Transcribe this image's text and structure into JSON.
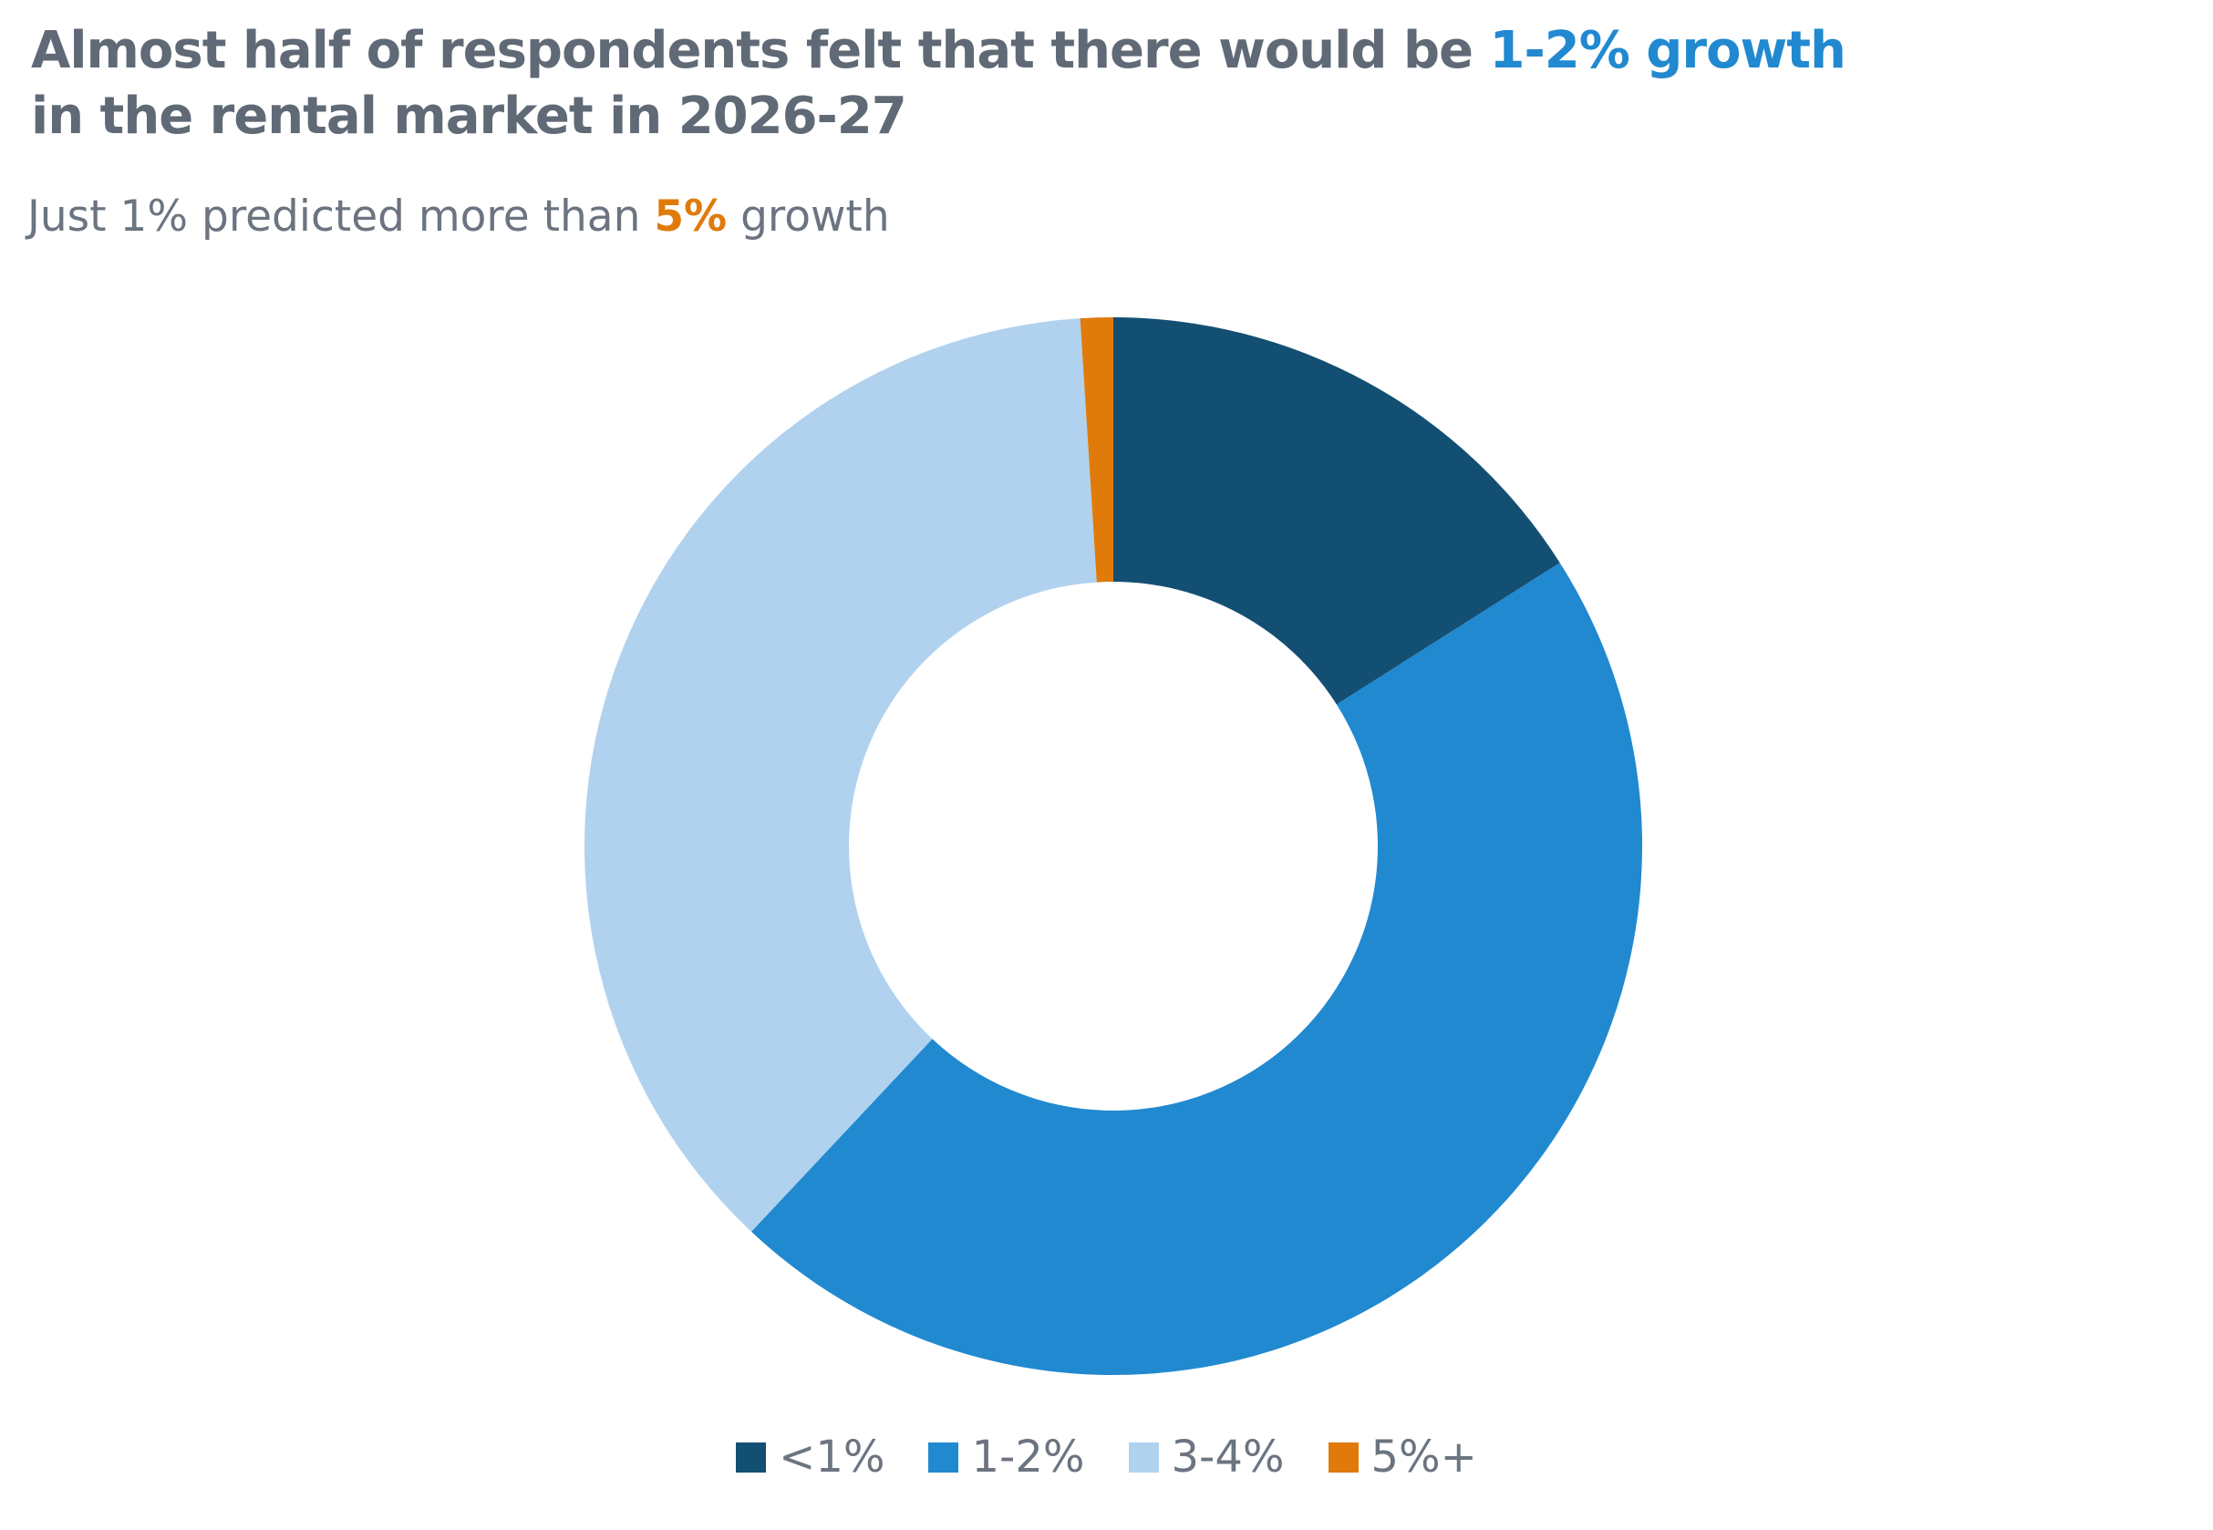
{
  "title": {
    "part1": "Almost half of respondents felt that there would be ",
    "highlight": "1-2% growth",
    "part2": "in the rental market in 2026-27",
    "highlight_color": "#2189d0"
  },
  "subtitle": {
    "part1": "Just 1% predicted more than ",
    "highlight": "5%",
    "part2": " growth",
    "highlight_color": "#e07b0b"
  },
  "chart_data": {
    "type": "pie",
    "variant": "donut",
    "categories": [
      "<1%",
      "1-2%",
      "3-4%",
      "5%+"
    ],
    "values": [
      16,
      46,
      37,
      1
    ],
    "colors": [
      "#134f73",
      "#2189d0",
      "#b0d2ef",
      "#e07b0b"
    ],
    "start_angle_deg": 0,
    "direction": "clockwise",
    "legend_position": "bottom"
  }
}
